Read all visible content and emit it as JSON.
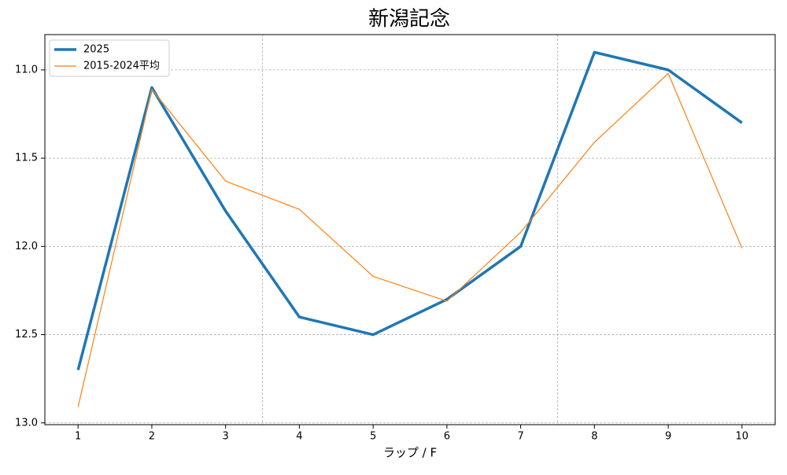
{
  "chart_data": {
    "type": "line",
    "title": "新潟記念",
    "xlabel": "ラップ / F",
    "x": [
      1,
      2,
      3,
      4,
      5,
      6,
      7,
      8,
      9,
      10
    ],
    "series": [
      {
        "name": "2025",
        "color": "#1f77b4",
        "line_width": 3.5,
        "values": [
          12.7,
          11.1,
          11.8,
          12.4,
          12.5,
          12.3,
          12.0,
          10.9,
          11.0,
          11.3
        ]
      },
      {
        "name": "2015-2024平均",
        "color": "#ff7f0e",
        "line_width": 1.2,
        "values": [
          12.91,
          11.11,
          11.63,
          11.79,
          12.17,
          12.31,
          11.92,
          11.41,
          11.02,
          12.01
        ]
      }
    ],
    "xlim": [
      0.55,
      10.45
    ],
    "xticks": [
      1,
      2,
      3,
      4,
      5,
      6,
      7,
      8,
      9,
      10
    ],
    "ylim": [
      10.8,
      13.01
    ],
    "y_inverted": true,
    "yticks": [
      {
        "value": 11,
        "label": "11.0"
      },
      {
        "value": 11.5,
        "label": "11.5"
      },
      {
        "value": 12,
        "label": "12.0"
      },
      {
        "value": 12.5,
        "label": "12.5"
      },
      {
        "value": 13,
        "label": "13.0"
      }
    ],
    "x_grid_lines": [
      3.5,
      7.5
    ],
    "grid": true,
    "legend": "upper left"
  }
}
